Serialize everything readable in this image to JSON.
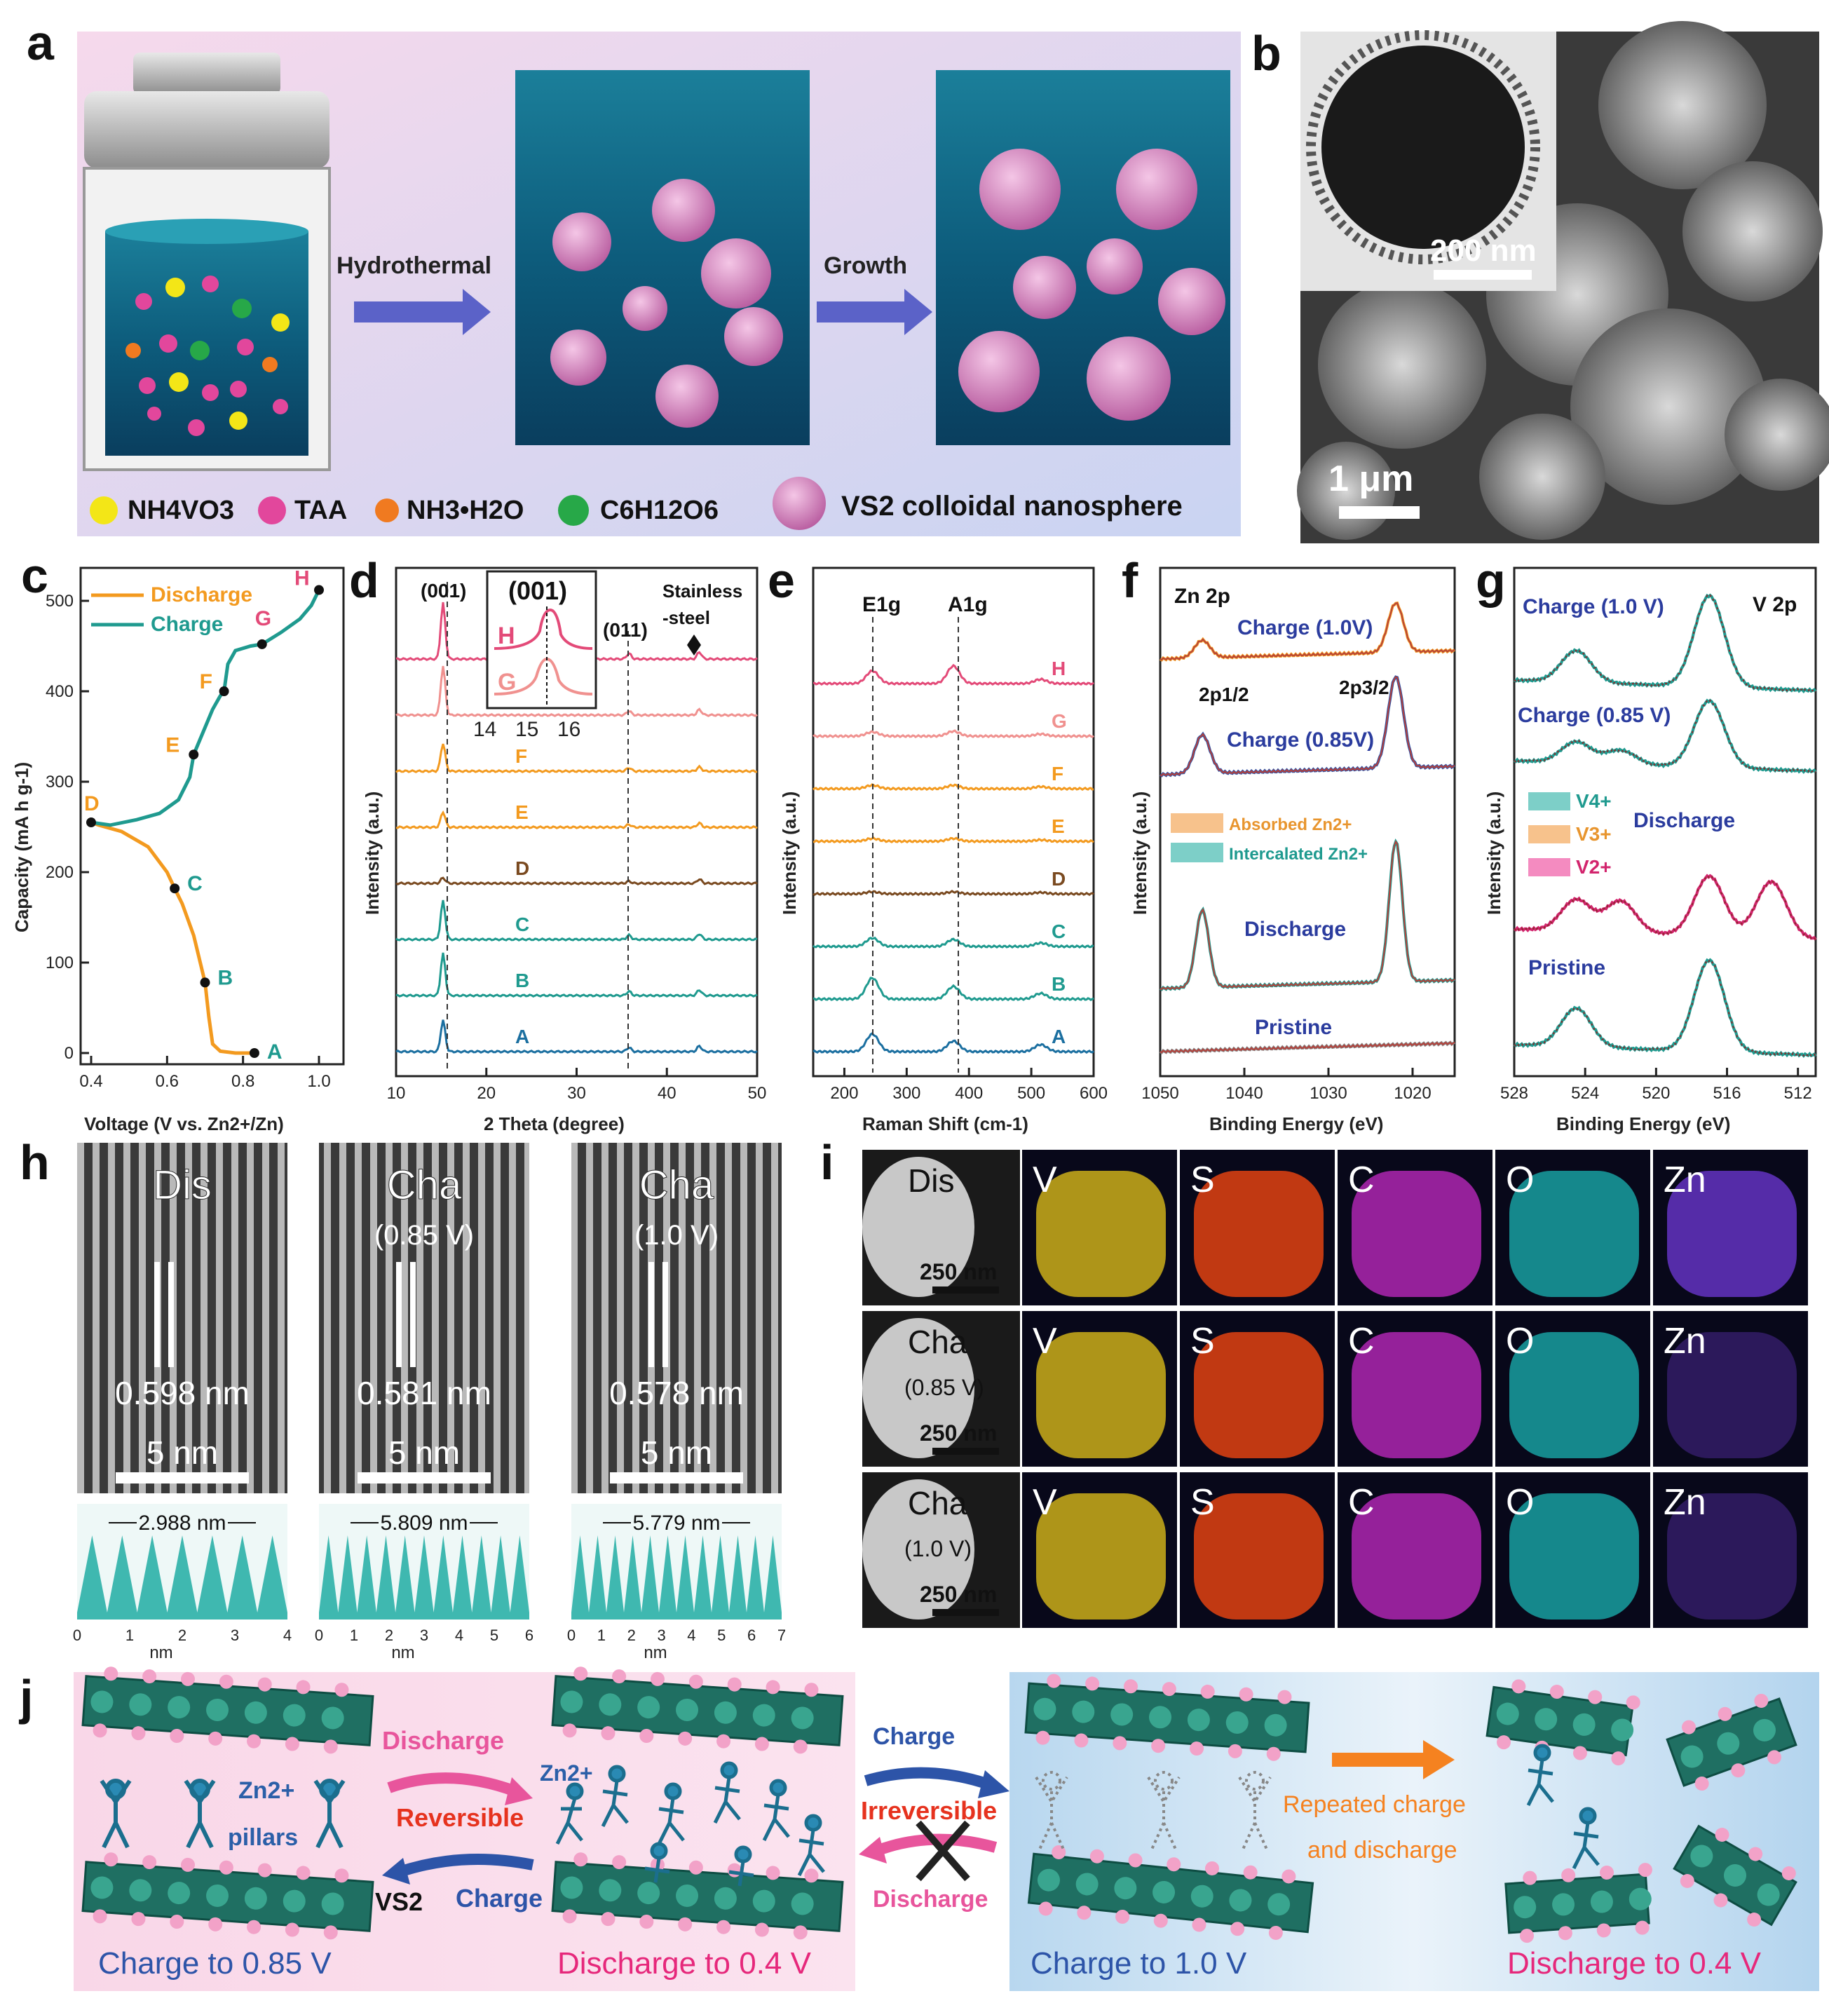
{
  "panel_letters": [
    "a",
    "b",
    "c",
    "d",
    "e",
    "f",
    "g",
    "h",
    "i",
    "j"
  ],
  "panel_a": {
    "step1": "Hydrothermal",
    "step2": "Growth",
    "legend": [
      {
        "label": "NH4VO3",
        "color": "#f3e617"
      },
      {
        "label": "TAA",
        "color": "#e2479c"
      },
      {
        "label": "NH3•H2O",
        "color": "#f07a20"
      },
      {
        "label": "C6H12O6",
        "color": "#27a848"
      }
    ],
    "legend_sphere": "VS2 colloidal nanosphere"
  },
  "panel_b": {
    "scale_main": "1 μm",
    "scale_inset": "200 nm"
  },
  "chart_data": [
    {
      "panel": "c",
      "type": "line",
      "xlabel": "Voltage (V vs. Zn2+/Zn)",
      "ylabel": "Capacity (mA h g-1)",
      "xlim": [
        0.4,
        1.0
      ],
      "ylim": [
        0,
        500
      ],
      "xticks": [
        "0.4",
        "0.6",
        "0.8",
        "1.0"
      ],
      "yticks": [
        "0",
        "100",
        "200",
        "300",
        "400",
        "500"
      ],
      "legend_position": "top-left",
      "series": [
        {
          "name": "Discharge",
          "color": "#f39a1f",
          "x": [
            0.83,
            0.78,
            0.74,
            0.72,
            0.71,
            0.7,
            0.67,
            0.64,
            0.62,
            0.6,
            0.55,
            0.48,
            0.42,
            0.4
          ],
          "y": [
            0,
            0,
            2,
            10,
            40,
            78,
            130,
            165,
            182,
            200,
            228,
            245,
            252,
            255
          ]
        },
        {
          "name": "Charge",
          "color": "#1f9a8f",
          "x": [
            0.4,
            0.45,
            0.52,
            0.58,
            0.63,
            0.66,
            0.67,
            0.69,
            0.72,
            0.74,
            0.75,
            0.76,
            0.78,
            0.82,
            0.85,
            0.9,
            0.95,
            0.98,
            1.0
          ],
          "y": [
            255,
            252,
            258,
            265,
            280,
            305,
            330,
            350,
            380,
            395,
            400,
            430,
            445,
            450,
            452,
            465,
            480,
            495,
            512
          ]
        }
      ],
      "points": [
        {
          "label": "A",
          "x": 0.83,
          "y": 0
        },
        {
          "label": "B",
          "x": 0.7,
          "y": 78
        },
        {
          "label": "C",
          "x": 0.62,
          "y": 182
        },
        {
          "label": "D",
          "x": 0.4,
          "y": 255
        },
        {
          "label": "E",
          "x": 0.67,
          "y": 330
        },
        {
          "label": "F",
          "x": 0.75,
          "y": 400
        },
        {
          "label": "G",
          "x": 0.85,
          "y": 452
        },
        {
          "label": "H",
          "x": 1.0,
          "y": 512
        }
      ]
    },
    {
      "panel": "d",
      "type": "line",
      "xlabel": "2 Theta (degree)",
      "ylabel": "Intensity (a.u.)",
      "xlim": [
        10,
        50
      ],
      "xticks": [
        "10",
        "20",
        "30",
        "40",
        "50"
      ],
      "peaks": [
        15.2,
        35.8,
        43.6
      ],
      "labels": [
        "A",
        "B",
        "C",
        "D",
        "E",
        "F",
        "G",
        "H"
      ],
      "annotations": [
        "(001)",
        "(011)",
        "Stainless",
        "-steel"
      ],
      "inset": {
        "title": "(001)",
        "xticks": [
          "14",
          "15",
          "16"
        ],
        "labels": [
          "H",
          "G"
        ]
      }
    },
    {
      "panel": "e",
      "type": "line",
      "xlabel": "Raman Shift (cm-1)",
      "ylabel": "Intensity (a.u.)",
      "xlim": [
        150,
        600
      ],
      "xticks": [
        "200",
        "300",
        "400",
        "500",
        "600"
      ],
      "peaks": [
        245,
        375,
        515
      ],
      "labels": [
        "A",
        "B",
        "C",
        "D",
        "E",
        "F",
        "G",
        "H"
      ],
      "annotations": [
        "E1g",
        "A1g"
      ]
    },
    {
      "panel": "f",
      "type": "line",
      "title": "Zn 2p",
      "xlabel": "Binding Energy (eV)",
      "ylabel": "Intensity (a.u.)",
      "xlim": [
        1050,
        1015
      ],
      "xticks": [
        "1050",
        "1040",
        "1030",
        "1020"
      ],
      "peaks": [
        1045,
        1022
      ],
      "states": [
        "Charge (1.0V)",
        "Charge (0.85V)",
        "Discharge",
        "Pristine"
      ],
      "annotations": [
        "2p1/2",
        "2p3/2"
      ],
      "legend": [
        "Absorbed Zn2+",
        "Intercalated Zn2+"
      ]
    },
    {
      "panel": "g",
      "type": "line",
      "title": "V 2p",
      "xlabel": "Binding Energy (eV)",
      "ylabel": "Intensity (a.u.)",
      "xlim": [
        528,
        511
      ],
      "xticks": [
        "528",
        "524",
        "520",
        "516",
        "512"
      ],
      "peaks": [
        524.5,
        517.0
      ],
      "states": [
        "Charge (1.0 V)",
        "Charge (0.85 V)",
        "Discharge",
        "Pristine"
      ],
      "legend": [
        "V4+",
        "V3+",
        "V2+"
      ]
    }
  ],
  "panel_h": [
    {
      "title": "Dis",
      "sub": "",
      "spacing": "0.598 nm",
      "scale": "5 nm",
      "profile": "2.988 nm",
      "xticks": [
        "0",
        "1",
        "2",
        "3",
        "4"
      ],
      "unit": "nm"
    },
    {
      "title": "Cha",
      "sub": "(0.85 V)",
      "spacing": "0.581 nm",
      "scale": "5 nm",
      "profile": "5.809 nm",
      "xticks": [
        "0",
        "1",
        "2",
        "3",
        "4",
        "5",
        "6"
      ],
      "unit": "nm"
    },
    {
      "title": "Cha",
      "sub": "(1.0 V)",
      "spacing": "0.578 nm",
      "scale": "5 nm",
      "profile": "5.779 nm",
      "xticks": [
        "0",
        "1",
        "2",
        "3",
        "4",
        "5",
        "6",
        "7"
      ],
      "unit": "nm"
    }
  ],
  "panel_i": {
    "rows": [
      {
        "title": "Dis",
        "sub": "",
        "scale": "250 nm"
      },
      {
        "title": "Cha",
        "sub": "(0.85 V)",
        "scale": "250 nm"
      },
      {
        "title": "Cha",
        "sub": "(1.0 V)",
        "scale": "250 nm"
      }
    ],
    "elements": [
      {
        "label": "V",
        "color": "#e6c419"
      },
      {
        "label": "S",
        "color": "#ff4a10"
      },
      {
        "label": "C",
        "color": "#c429c6"
      },
      {
        "label": "O",
        "color": "#1ab3b3"
      },
      {
        "label": "Zn",
        "color": "#6f38d8"
      }
    ]
  },
  "panel_j": {
    "discharge": "Discharge",
    "reversible": "Reversible",
    "charge": "Charge",
    "zn_ion": "Zn2+",
    "pillars": "pillars",
    "vs2": "VS2",
    "irreversible": "Irreversible",
    "repeated1": "Repeated charge",
    "repeated2": "and discharge",
    "cap1": "Charge to 0.85 V",
    "cap2": "Discharge to 0.4 V",
    "cap3": "Charge to 1.0 V",
    "cap4": "Discharge to 0.4 V"
  }
}
